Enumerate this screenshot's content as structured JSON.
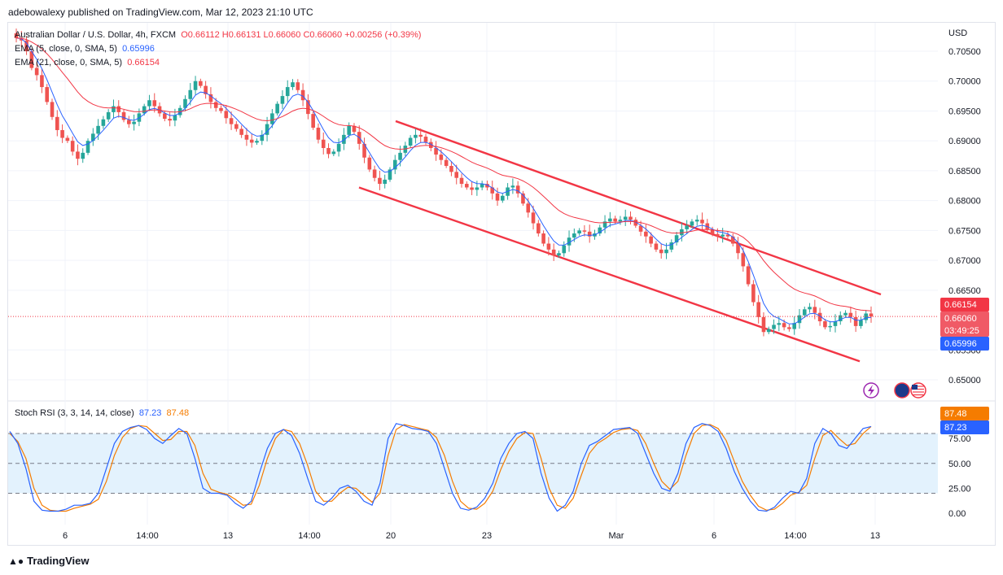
{
  "header": {
    "publisher": "adebowalexy published on TradingView.com, Mar 12, 2023 21:10 UTC"
  },
  "legend": {
    "symbol": "Australian Dollar / U.S. Dollar, 4h, FXCM",
    "ohlc": "O0.66112  H0.66131  L0.66060  C0.66060  +0.00256 (+0.39%)",
    "ema5_label": "EMA (5, close, 0, SMA, 5)",
    "ema5_value": "0.65996",
    "ema21_label": "EMA (21, close, 0, SMA, 5)",
    "ema21_value": "0.66154"
  },
  "stoch_legend": {
    "label": "Stoch RSI (3, 3, 14, 14, close)",
    "k_value": "87.23",
    "d_value": "87.48"
  },
  "price_axis": {
    "currency": "USD",
    "ticks": [
      "0.70500",
      "0.70000",
      "0.69500",
      "0.69000",
      "0.68500",
      "0.68000",
      "0.67500",
      "0.67000",
      "0.66500",
      "0.65500",
      "0.65000"
    ],
    "badges": {
      "ema21": "0.66154",
      "price": "0.66060",
      "countdown": "03:49:25",
      "ema5": "0.65996"
    }
  },
  "stoch_axis": {
    "ticks": [
      "75.00",
      "50.00",
      "25.00",
      "0.00"
    ],
    "badges": {
      "d": "87.48",
      "k": "87.23"
    }
  },
  "time_axis": {
    "labels": [
      "6",
      "14:00",
      "13",
      "14:00",
      "20",
      "23",
      "Mar",
      "6",
      "14:00",
      "13"
    ]
  },
  "footer": {
    "brand": "TradingView"
  },
  "colors": {
    "up": "#26a69a",
    "down": "#ef5350",
    "ema5": "#2962ff",
    "ema21": "#f23645",
    "channel": "#f23645",
    "stoch_k": "#2962ff",
    "stoch_d": "#f57c00",
    "band": "#e3f2fd"
  },
  "chart_data": [
    {
      "type": "candlestick",
      "title": "Australian Dollar / U.S. Dollar, 4h, FXCM",
      "ylabel": "USD",
      "ylim": [
        0.6482,
        0.7082
      ],
      "x": [
        "6",
        "14:00",
        "13",
        "14:00",
        "20",
        "23",
        "Mar",
        "6",
        "14:00",
        "13"
      ],
      "path": [
        0.7072,
        0.7068,
        0.705,
        0.7022,
        0.701,
        0.699,
        0.6965,
        0.694,
        0.6918,
        0.6905,
        0.69,
        0.6882,
        0.687,
        0.688,
        0.69,
        0.6912,
        0.6925,
        0.6936,
        0.6948,
        0.6958,
        0.6948,
        0.6935,
        0.6928,
        0.6932,
        0.6946,
        0.6958,
        0.6968,
        0.6958,
        0.6946,
        0.6937,
        0.6934,
        0.6943,
        0.6955,
        0.697,
        0.6985,
        0.7,
        0.6992,
        0.6978,
        0.6965,
        0.6955,
        0.695,
        0.6938,
        0.6928,
        0.692,
        0.691,
        0.6902,
        0.6897,
        0.69,
        0.691,
        0.6928,
        0.6946,
        0.6962,
        0.6975,
        0.699,
        0.6998,
        0.6985,
        0.6968,
        0.6945,
        0.6922,
        0.6902,
        0.6888,
        0.6878,
        0.6882,
        0.6895,
        0.691,
        0.6925,
        0.6915,
        0.6895,
        0.6872,
        0.6852,
        0.6838,
        0.6828,
        0.6835,
        0.6852,
        0.6868,
        0.688,
        0.6892,
        0.6905,
        0.691,
        0.6907,
        0.6898,
        0.6888,
        0.6877,
        0.6868,
        0.6858,
        0.6848,
        0.6838,
        0.6828,
        0.6822,
        0.6818,
        0.6822,
        0.6828,
        0.6822,
        0.6812,
        0.68,
        0.6808,
        0.6822,
        0.6825,
        0.6812,
        0.6795,
        0.678,
        0.6762,
        0.6745,
        0.6728,
        0.6718,
        0.6708,
        0.6712,
        0.6725,
        0.6738,
        0.6745,
        0.675,
        0.6748,
        0.674,
        0.6745,
        0.6755,
        0.6765,
        0.677,
        0.6765,
        0.6768,
        0.6773,
        0.6768,
        0.6758,
        0.6748,
        0.674,
        0.6728,
        0.6718,
        0.6712,
        0.6718,
        0.673,
        0.6742,
        0.6752,
        0.6758,
        0.6765,
        0.6768,
        0.6762,
        0.6752,
        0.6744,
        0.674,
        0.6743,
        0.674,
        0.6728,
        0.6712,
        0.669,
        0.666,
        0.663,
        0.6605,
        0.658,
        0.6585,
        0.6592,
        0.6595,
        0.6588,
        0.6585,
        0.6595,
        0.6608,
        0.6618,
        0.6622,
        0.6612,
        0.6598,
        0.6588,
        0.659,
        0.6598,
        0.6608,
        0.6612,
        0.6605,
        0.659,
        0.66,
        0.6611,
        0.6606
      ]
    },
    {
      "type": "line",
      "title": "Stoch RSI (3, 3, 14, 14, close)",
      "ylim": [
        -12,
        100
      ],
      "gridlines": [
        80,
        50,
        20
      ],
      "series": [
        {
          "name": "87.23",
          "values": [
            82,
            70,
            45,
            12,
            3,
            2,
            2,
            4,
            8,
            8,
            10,
            20,
            45,
            70,
            82,
            86,
            88,
            84,
            75,
            70,
            78,
            85,
            80,
            55,
            25,
            20,
            20,
            18,
            10,
            5,
            12,
            40,
            65,
            80,
            84,
            78,
            60,
            35,
            12,
            8,
            15,
            25,
            28,
            22,
            12,
            8,
            30,
            75,
            90,
            88,
            85,
            84,
            82,
            70,
            45,
            20,
            5,
            3,
            6,
            15,
            30,
            55,
            70,
            80,
            82,
            75,
            40,
            15,
            2,
            8,
            22,
            50,
            68,
            72,
            78,
            84,
            85,
            86,
            80,
            60,
            40,
            25,
            22,
            40,
            70,
            86,
            90,
            88,
            82,
            65,
            42,
            25,
            12,
            3,
            2,
            6,
            15,
            22,
            20,
            35,
            70,
            85,
            80,
            68,
            65,
            75,
            85,
            87
          ]
        },
        {
          "name": "87.48",
          "values": [
            80,
            72,
            55,
            25,
            8,
            3,
            2,
            2,
            5,
            7,
            9,
            14,
            32,
            58,
            76,
            85,
            88,
            87,
            80,
            73,
            74,
            82,
            82,
            68,
            40,
            24,
            21,
            19,
            14,
            8,
            9,
            28,
            55,
            75,
            84,
            82,
            70,
            48,
            22,
            12,
            12,
            20,
            26,
            25,
            18,
            11,
            20,
            58,
            84,
            89,
            87,
            85,
            83,
            76,
            58,
            32,
            12,
            5,
            4,
            10,
            22,
            44,
            62,
            75,
            81,
            80,
            55,
            25,
            8,
            5,
            15,
            38,
            60,
            70,
            75,
            81,
            84,
            85,
            83,
            70,
            50,
            32,
            24,
            32,
            58,
            80,
            88,
            89,
            85,
            73,
            52,
            32,
            18,
            7,
            3,
            4,
            10,
            18,
            21,
            28,
            55,
            78,
            83,
            75,
            68,
            70,
            80,
            87
          ]
        }
      ]
    }
  ]
}
